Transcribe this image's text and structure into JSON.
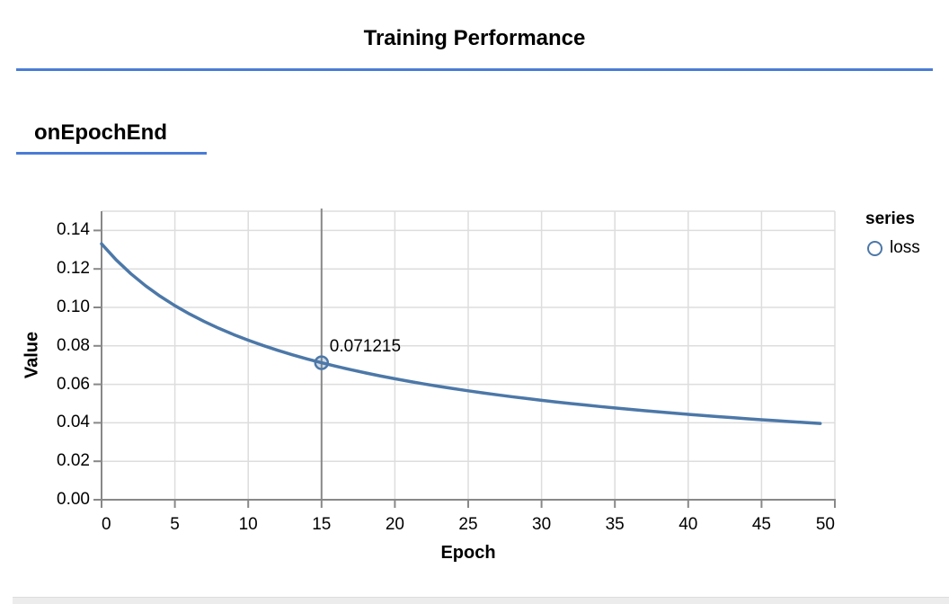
{
  "header": {
    "title": "Training Performance",
    "rule_color": "#4a7cd6"
  },
  "section": {
    "title": "onEpochEnd"
  },
  "legend": {
    "title": "series",
    "items": [
      {
        "label": "loss",
        "marker": "circle-outline-icon",
        "color": "#4c78a8"
      }
    ]
  },
  "footer": {
    "strip_color": "#ececec"
  },
  "chart_data": {
    "type": "line",
    "title": "onEpochEnd",
    "xlabel": "Epoch",
    "ylabel": "Value",
    "xlim": [
      0,
      50
    ],
    "ylim": [
      0,
      0.15
    ],
    "grid": true,
    "legend_position": "right",
    "x_ticks": [
      0,
      5,
      10,
      15,
      20,
      25,
      30,
      35,
      40,
      45,
      50
    ],
    "x_tick_labels": [
      "0",
      "5",
      "10",
      "15",
      "20",
      "25",
      "30",
      "35",
      "40",
      "45",
      "50"
    ],
    "y_ticks": [
      0,
      0.02,
      0.04,
      0.06,
      0.08,
      0.1,
      0.12,
      0.14
    ],
    "y_tick_labels": [
      "0.00",
      "0.02",
      "0.04",
      "0.06",
      "0.08",
      "0.10",
      "0.12",
      "0.14"
    ],
    "x": [
      0,
      1,
      2,
      3,
      4,
      5,
      6,
      7,
      8,
      9,
      10,
      11,
      12,
      13,
      14,
      15,
      16,
      17,
      18,
      19,
      20,
      21,
      22,
      23,
      24,
      25,
      26,
      27,
      28,
      29,
      30,
      31,
      32,
      33,
      34,
      35,
      36,
      37,
      38,
      39,
      40,
      41,
      42,
      43,
      44,
      45,
      46,
      47,
      48,
      49
    ],
    "series": [
      {
        "name": "loss",
        "color": "#4c78a8",
        "values": [
          0.13305,
          0.12468,
          0.1175,
          0.11125,
          0.10577,
          0.10091,
          0.09657,
          0.09266,
          0.08912,
          0.08589,
          0.08294,
          0.08023,
          0.07772,
          0.0754,
          0.07324,
          0.071215,
          0.06936,
          0.0676,
          0.06594,
          0.06438,
          0.06291,
          0.06152,
          0.0602,
          0.05895,
          0.05776,
          0.05663,
          0.05555,
          0.05453,
          0.05354,
          0.05261,
          0.05171,
          0.05084,
          0.05001,
          0.04922,
          0.04845,
          0.04771,
          0.04701,
          0.04632,
          0.04566,
          0.04502,
          0.04441,
          0.04381,
          0.04324,
          0.04268,
          0.04214,
          0.04161,
          0.04111,
          0.04061,
          0.04013,
          0.03967
        ]
      }
    ],
    "cursor": {
      "x": 15,
      "y": 0.071215,
      "label": "0.071215"
    },
    "colors": {
      "grid": "#dddddd",
      "axis": "#888888",
      "crosshair": "#888888"
    }
  }
}
